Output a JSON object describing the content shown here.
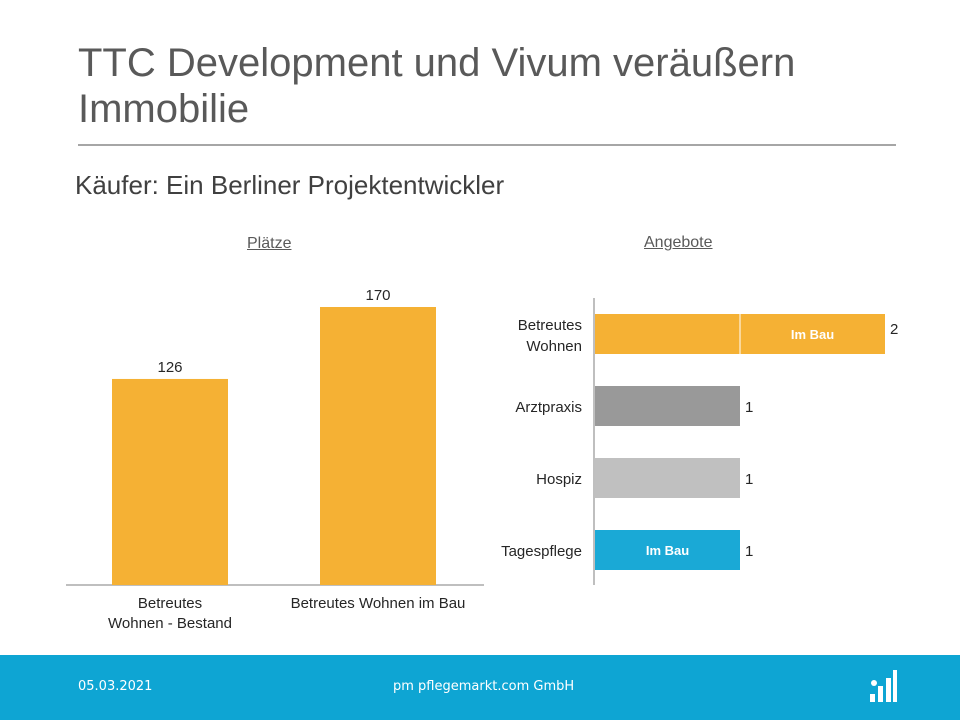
{
  "slide": {
    "title": "TTC Development und Vivum veräußern Immobilie",
    "subtitle": "Käufer: Ein Berliner Projektentwickler"
  },
  "footer": {
    "date": "05.03.2021",
    "company": "pm pflegemarkt.com GmbH",
    "logo_icon": "pflegemarkt-logo-icon"
  },
  "colors": {
    "orange": "#f5b134",
    "dark_gray": "#999999",
    "light_gray": "#c0c0c0",
    "blue": "#1aa9d6",
    "footer": "#0ea5d3"
  },
  "chart_data": [
    {
      "type": "bar",
      "title": "Plätze",
      "categories": [
        "Betreutes Wohnen - Bestand",
        "Betreutes Wohnen im Bau"
      ],
      "category_lines": [
        [
          "Betreutes",
          "Wohnen - Bestand"
        ],
        [
          "Betreutes Wohnen im Bau"
        ]
      ],
      "values": [
        126,
        170
      ],
      "data_labels": [
        "126",
        "170"
      ],
      "ylim": [
        0,
        170
      ],
      "grid": false,
      "legend": false
    },
    {
      "type": "bar",
      "orientation": "horizontal",
      "title": "Angebote",
      "categories": [
        "Betreutes Wohnen",
        "Arztpraxis",
        "Hospiz",
        "Tagespflege"
      ],
      "category_lines": [
        [
          "Betreutes",
          "Wohnen"
        ],
        [
          "Arztpraxis"
        ],
        [
          "Hospiz"
        ],
        [
          "Tagespflege"
        ]
      ],
      "values": [
        2,
        1,
        1,
        1
      ],
      "data_labels": [
        "2",
        "1",
        "1",
        "1"
      ],
      "segments": [
        [
          {
            "value": 1,
            "label": ""
          },
          {
            "value": 1,
            "label": "Im Bau"
          }
        ],
        [
          {
            "value": 1,
            "label": ""
          }
        ],
        [
          {
            "value": 1,
            "label": ""
          }
        ],
        [
          {
            "value": 1,
            "label": "Im Bau"
          }
        ]
      ],
      "bar_colors": [
        "#f5b134",
        "#999999",
        "#c0c0c0",
        "#1aa9d6"
      ],
      "xlim": [
        0,
        2
      ],
      "grid": false,
      "legend": false
    }
  ]
}
